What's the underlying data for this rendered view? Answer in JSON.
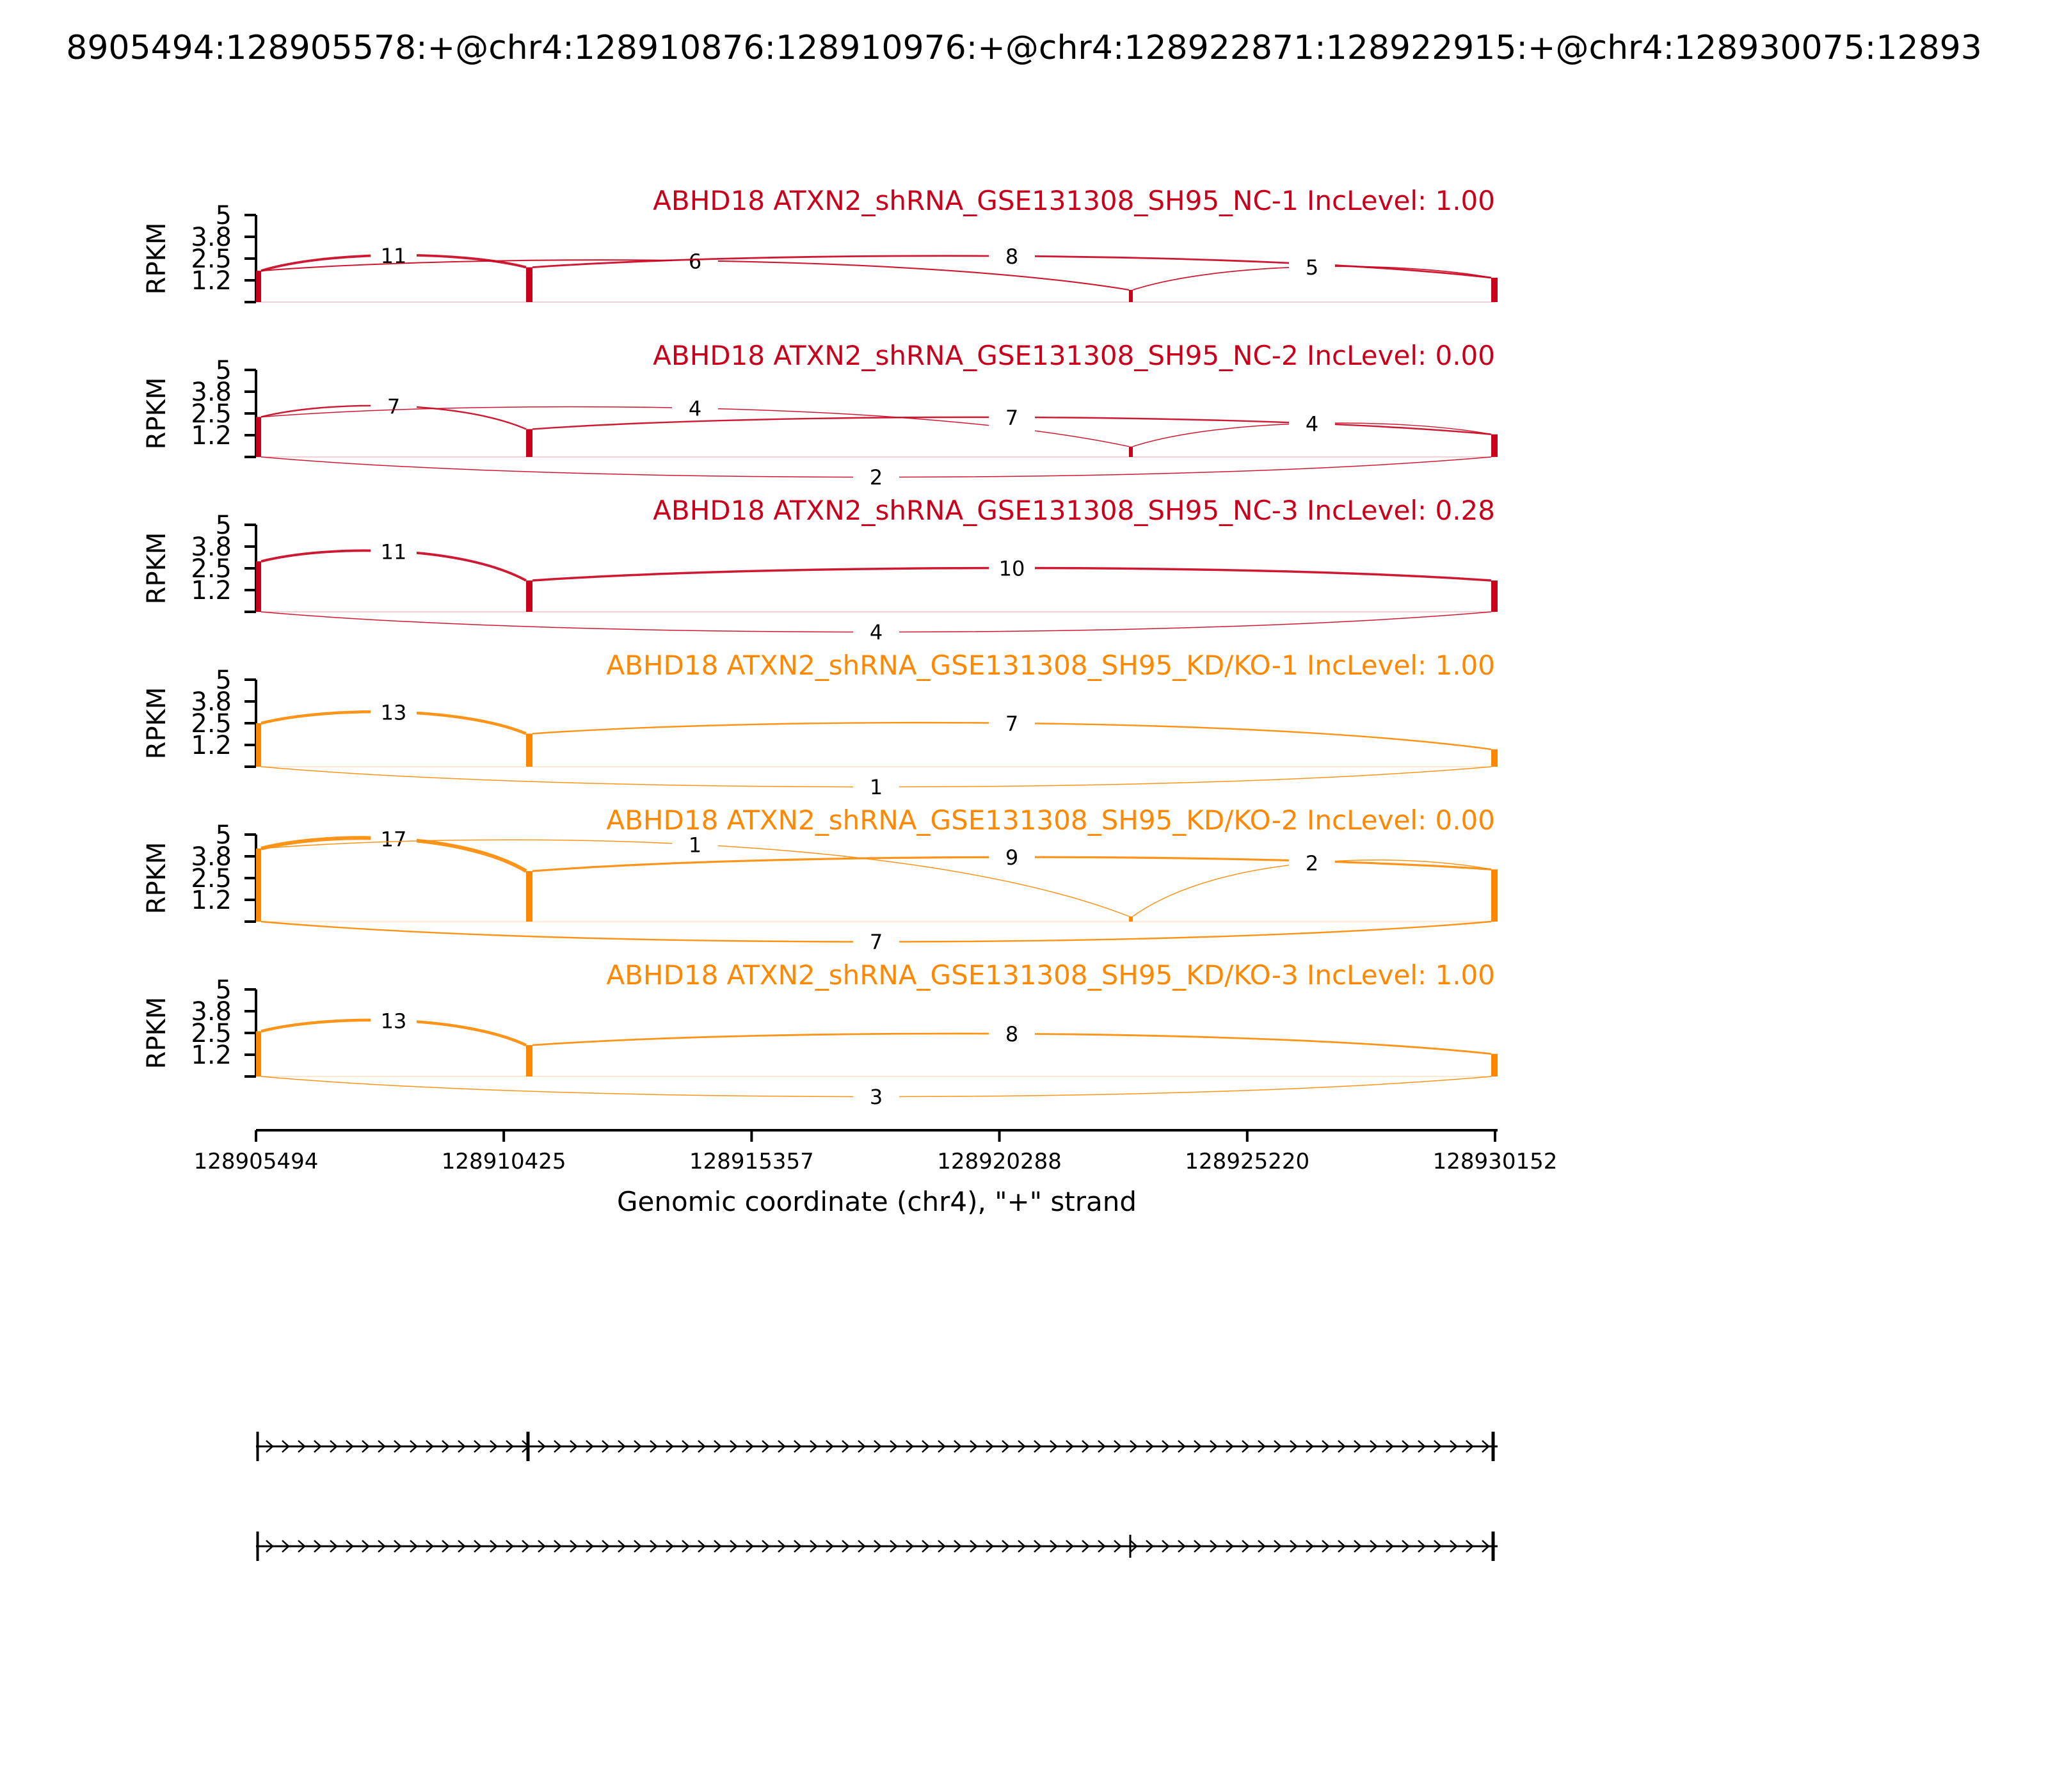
{
  "figure": {
    "title": "8905494:128905578:+@chr4:128910876:128910976:+@chr4:128922871:128922915:+@chr4:128930075:12893"
  },
  "chart_data": {
    "type": "sashimi",
    "xlabel": "Genomic coordinate (chr4), \"+\" strand",
    "xlim": [
      128905494,
      128930152
    ],
    "x_ticks": [
      "128905494",
      "128910425",
      "128915357",
      "128920288",
      "128925220",
      "128930152"
    ],
    "y_axis_label": "RPKM",
    "y_ticks": [
      "1.2",
      "2.5",
      "3.8",
      "5"
    ],
    "ylim": [
      0,
      5
    ],
    "colors": {
      "NC": "#c9001c",
      "KD": "#ff8800",
      "axis": "#000000"
    },
    "exons": [
      {
        "start": 128905494,
        "end": 128905578
      },
      {
        "start": 128910876,
        "end": 128910976
      },
      {
        "start": 128922871,
        "end": 128922915
      },
      {
        "start": 128930075,
        "end": 128930152
      }
    ],
    "samples": [
      {
        "label": "ABHD18 ATXN2_shRNA_GSE131308_SH95_NC-1 IncLevel: 1.00",
        "group": "NC",
        "coverage": [
          1.8,
          2.0,
          0.7,
          1.4
        ],
        "junctions": [
          {
            "from": 0,
            "to": 1,
            "count": "11",
            "side": "above"
          },
          {
            "from": 0,
            "to": 2,
            "count": "6",
            "side": "above"
          },
          {
            "from": 1,
            "to": 3,
            "count": "8",
            "side": "above"
          },
          {
            "from": 2,
            "to": 3,
            "count": "5",
            "side": "above"
          }
        ]
      },
      {
        "label": "ABHD18 ATXN2_shRNA_GSE131308_SH95_NC-2 IncLevel: 0.00",
        "group": "NC",
        "coverage": [
          2.3,
          1.6,
          0.6,
          1.3
        ],
        "junctions": [
          {
            "from": 0,
            "to": 1,
            "count": "7",
            "side": "above"
          },
          {
            "from": 0,
            "to": 2,
            "count": "4",
            "side": "above"
          },
          {
            "from": 1,
            "to": 3,
            "count": "7",
            "side": "above"
          },
          {
            "from": 2,
            "to": 3,
            "count": "4",
            "side": "above"
          },
          {
            "from": 0,
            "to": 3,
            "count": "2",
            "side": "below"
          }
        ]
      },
      {
        "label": "ABHD18 ATXN2_shRNA_GSE131308_SH95_NC-3 IncLevel: 0.28",
        "group": "NC",
        "coverage": [
          2.9,
          1.8,
          0.0,
          1.8
        ],
        "junctions": [
          {
            "from": 0,
            "to": 1,
            "count": "11",
            "side": "above"
          },
          {
            "from": 1,
            "to": 3,
            "count": "10",
            "side": "above"
          },
          {
            "from": 0,
            "to": 3,
            "count": "4",
            "side": "below"
          }
        ]
      },
      {
        "label": "ABHD18 ATXN2_shRNA_GSE131308_SH95_KD/KO-1 IncLevel: 1.00",
        "group": "KD",
        "coverage": [
          2.5,
          1.9,
          0.0,
          1.0
        ],
        "junctions": [
          {
            "from": 0,
            "to": 1,
            "count": "13",
            "side": "above"
          },
          {
            "from": 1,
            "to": 3,
            "count": "7",
            "side": "above"
          },
          {
            "from": 0,
            "to": 3,
            "count": "1",
            "side": "below"
          }
        ]
      },
      {
        "label": "ABHD18 ATXN2_shRNA_GSE131308_SH95_KD/KO-2 IncLevel: 0.00",
        "group": "KD",
        "coverage": [
          4.2,
          2.9,
          0.3,
          3.0
        ],
        "junctions": [
          {
            "from": 0,
            "to": 1,
            "count": "17",
            "side": "above"
          },
          {
            "from": 0,
            "to": 2,
            "count": "1",
            "side": "above"
          },
          {
            "from": 1,
            "to": 3,
            "count": "9",
            "side": "above"
          },
          {
            "from": 2,
            "to": 3,
            "count": "2",
            "side": "above"
          },
          {
            "from": 0,
            "to": 3,
            "count": "7",
            "side": "below"
          }
        ]
      },
      {
        "label": "ABHD18 ATXN2_shRNA_GSE131308_SH95_KD/KO-3 IncLevel: 1.00",
        "group": "KD",
        "coverage": [
          2.6,
          1.8,
          0.0,
          1.3
        ],
        "junctions": [
          {
            "from": 0,
            "to": 1,
            "count": "13",
            "side": "above"
          },
          {
            "from": 1,
            "to": 3,
            "count": "8",
            "side": "above"
          },
          {
            "from": 0,
            "to": 3,
            "count": "3",
            "side": "below"
          }
        ]
      }
    ],
    "isoforms": [
      {
        "exons": [
          0,
          1,
          3
        ]
      },
      {
        "exons": [
          0,
          2,
          3
        ]
      }
    ]
  }
}
